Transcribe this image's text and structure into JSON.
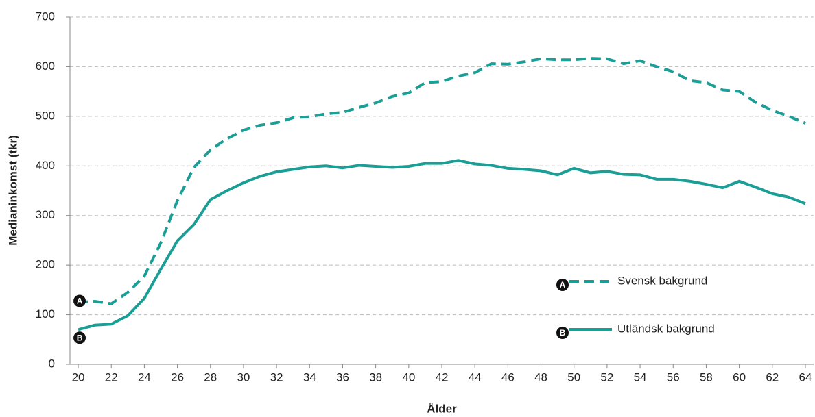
{
  "chart_data": {
    "type": "line",
    "xlabel": "Ålder",
    "ylabel": "Medianinkomst (tkr)",
    "x": [
      20,
      21,
      22,
      23,
      24,
      25,
      26,
      27,
      28,
      29,
      30,
      31,
      32,
      33,
      34,
      35,
      36,
      37,
      38,
      39,
      40,
      41,
      42,
      43,
      44,
      45,
      46,
      47,
      48,
      49,
      50,
      51,
      52,
      53,
      54,
      55,
      56,
      57,
      58,
      59,
      60,
      61,
      62,
      63,
      64
    ],
    "xlim": [
      19.5,
      64.5
    ],
    "xticks": [
      20,
      22,
      24,
      26,
      28,
      30,
      32,
      34,
      36,
      38,
      40,
      42,
      44,
      46,
      48,
      50,
      52,
      54,
      56,
      58,
      60,
      62,
      64
    ],
    "ylim": [
      0,
      700
    ],
    "yticks": [
      0,
      100,
      200,
      300,
      400,
      500,
      600,
      700
    ],
    "grid": true,
    "legend": "lower right",
    "series": [
      {
        "name": "Svensk bakgrund",
        "marker": "A",
        "color": "#1a9e96",
        "style": "dashed",
        "values": [
          125,
          127,
          122,
          145,
          178,
          245,
          330,
          397,
          432,
          455,
          472,
          482,
          487,
          497,
          499,
          505,
          508,
          518,
          527,
          540,
          547,
          568,
          570,
          581,
          588,
          606,
          605,
          610,
          616,
          614,
          614,
          617,
          616,
          606,
          612,
          600,
          590,
          572,
          568,
          553,
          550,
          528,
          512,
          500,
          486
        ]
      },
      {
        "name": "Utländsk bakgrund",
        "marker": "B",
        "color": "#1a9e96",
        "style": "solid",
        "values": [
          70,
          79,
          81,
          98,
          133,
          192,
          249,
          282,
          332,
          350,
          366,
          379,
          388,
          393,
          398,
          400,
          396,
          401,
          399,
          397,
          399,
          405,
          405,
          411,
          404,
          401,
          395,
          393,
          390,
          382,
          395,
          386,
          389,
          383,
          382,
          373,
          373,
          369,
          363,
          356,
          369,
          357,
          344,
          337,
          324
        ]
      }
    ]
  }
}
